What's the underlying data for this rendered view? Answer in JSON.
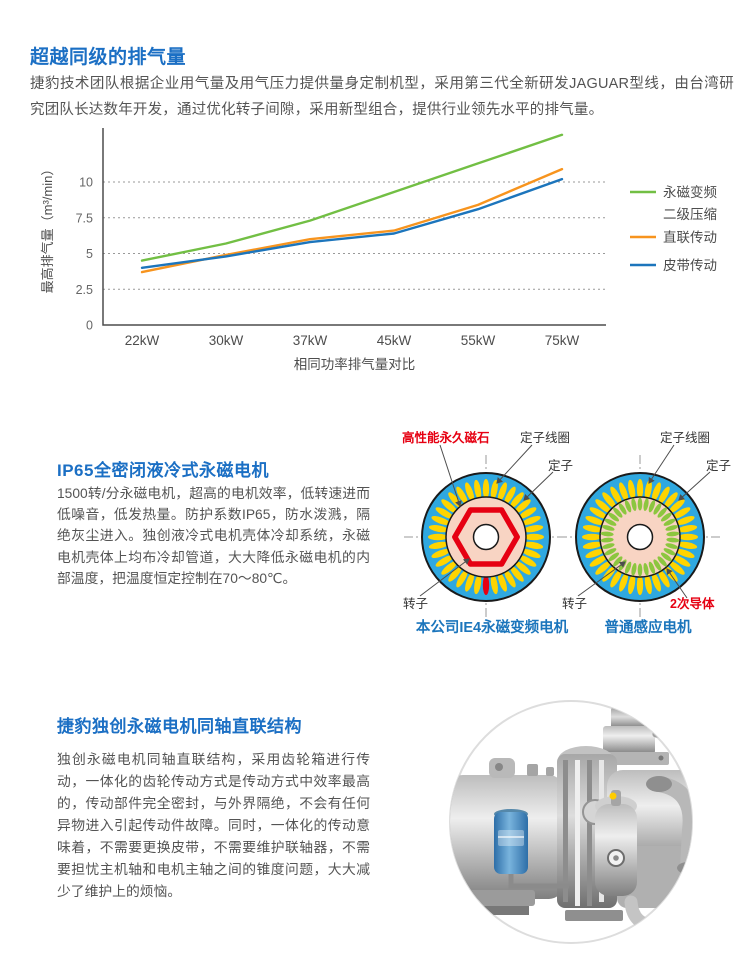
{
  "page": {
    "background": "#ffffff"
  },
  "colors": {
    "heading_blue": "#1b6fc4",
    "caption_blue": "#1b75bc",
    "body_text": "#545454",
    "chart_green": "#72bf44",
    "chart_orange": "#f7941e",
    "chart_blue": "#1c75bc",
    "diagram_ring_blue": "#2fa8e0",
    "diagram_slot_yellow": "#ffd400",
    "diagram_rotor_pink": "#f8d4c3",
    "diagram_magnet_red": "#e60012",
    "diagram_conductor_green": "#8cc63f"
  },
  "section1": {
    "title": "超越同级的排气量",
    "body": "捷豹技术团队根据企业用气量及用气压力提供量身定制机型，采用第三代全新研发JAGUAR型线，由台湾研究团队长达数年开发，通过优化转子间隙，采用新型组合，提供行业领先水平的排气量。"
  },
  "chart_data": {
    "type": "line",
    "title": "",
    "xlabel": "相同功率排气量对比",
    "ylabel": "最高排气量（m³/min）",
    "categories": [
      "22kW",
      "30kW",
      "37kW",
      "45kW",
      "55kW",
      "75kW"
    ],
    "yticks": [
      0,
      2.5,
      5,
      7.5,
      10
    ],
    "ylim": [
      0,
      14
    ],
    "grid": true,
    "legend_position": "right",
    "series": [
      {
        "name": "永磁变频二级压缩",
        "legend_lines": [
          "永磁变频",
          "二级压缩"
        ],
        "color": "#72bf44",
        "values": [
          4.5,
          5.7,
          7.3,
          9.3,
          11.3,
          13.3
        ]
      },
      {
        "name": "直联传动",
        "legend_lines": [
          "直联传动"
        ],
        "color": "#f7941e",
        "values": [
          3.7,
          4.9,
          6.0,
          6.6,
          8.4,
          10.9
        ]
      },
      {
        "name": "皮带传动",
        "legend_lines": [
          "皮带传动"
        ],
        "color": "#1c75bc",
        "values": [
          4.0,
          4.8,
          5.8,
          6.4,
          8.1,
          10.2
        ]
      }
    ]
  },
  "section2": {
    "title": "IP65全密闭液冷式永磁电机",
    "body": "1500转/分永磁电机，超高的电机效率，低转速进而低噪音，低发热量。防护系数IP65，防水泼溅，隔绝灰尘进入。独创液冷式电机壳体冷却系统，永磁电机壳体上均布冷却管道，大大降低永磁电机的内部温度，把温度恒定控制在70～80℃。",
    "diagram": {
      "labels": {
        "magnet": "高性能永久磁石",
        "stator_coil": "定子线圈",
        "stator": "定子",
        "rotor": "转子",
        "secondary_conductor": "2次导体"
      },
      "left_caption": "本公司IE4永磁变频电机",
      "right_caption": "普通感应电机"
    }
  },
  "section3": {
    "title": "捷豹独创永磁电机同轴直联结构",
    "body": "独创永磁电机同轴直联结构，采用齿轮箱进行传动，一体化的齿轮传动方式是传动方式中效率最高的，传动部件完全密封，与外界隔绝，不会有任何异物进入引起传动件故障。同时，一体化的传动意味着，不需要更换皮带，不需要维护联轴器，不需要担忧主机轴和电机主轴之间的锥度问题，大大减少了维护上的烦恼。"
  }
}
